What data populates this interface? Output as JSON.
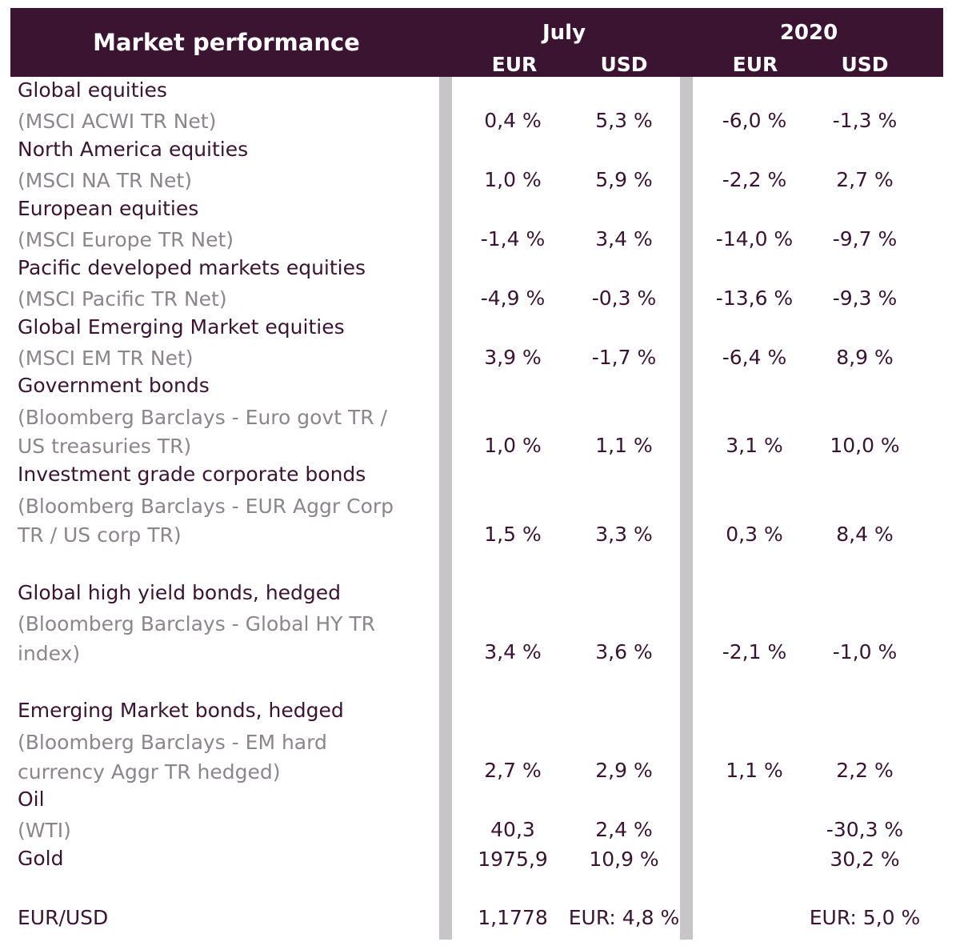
{
  "header": {
    "title": "Market performance",
    "group_july": "July",
    "group_2020": "2020",
    "cols": [
      "EUR",
      "USD",
      "EUR",
      "USD"
    ]
  },
  "rows": [
    {
      "name": "Global equities",
      "sub": [
        "(MSCI ACWI TR Net)"
      ],
      "values": [
        "0,4 %",
        "5,3 %",
        "-6,0 %",
        "-1,3 %"
      ]
    },
    {
      "name": "North America equities",
      "sub": [
        "(MSCI NA TR Net)"
      ],
      "values": [
        "1,0 %",
        "5,9 %",
        "-2,2 %",
        "2,7 %"
      ]
    },
    {
      "name": "European equities",
      "sub": [
        "(MSCI Europe TR Net)"
      ],
      "values": [
        "-1,4 %",
        "3,4 %",
        "-14,0 %",
        "-9,7 %"
      ]
    },
    {
      "name": "Pacific developed markets equities",
      "sub": [
        "(MSCI Pacific TR Net)"
      ],
      "values": [
        "-4,9 %",
        "-0,3 %",
        "-13,6 %",
        "-9,3 %"
      ]
    },
    {
      "name": "Global Emerging Market equities",
      "sub": [
        "(MSCI EM TR Net)"
      ],
      "values": [
        "3,9 %",
        "-1,7 %",
        "-6,4 %",
        "8,9 %"
      ]
    },
    {
      "name": "Government bonds",
      "sub": [
        "(Bloomberg Barclays - Euro govt TR /",
        "US treasuries TR)"
      ],
      "values": [
        "1,0 %",
        "1,1 %",
        "3,1 %",
        "10,0 %"
      ]
    },
    {
      "name": "Investment grade corporate bonds",
      "sub": [
        "(Bloomberg Barclays - EUR Aggr Corp",
        "TR / US corp TR)"
      ],
      "values": [
        "1,5 %",
        "3,3 %",
        "0,3 %",
        "8,4 %"
      ]
    },
    {
      "name": "Global high yield bonds, hedged",
      "sub": [
        "(Bloomberg Barclays - Global HY TR",
        "index)"
      ],
      "values": [
        "3,4 %",
        "3,6 %",
        "-2,1 %",
        "-1,0 %"
      ]
    },
    {
      "name": "Emerging Market bonds, hedged",
      "sub": [
        "(Bloomberg Barclays - EM hard",
        "currency Aggr TR hedged)"
      ],
      "values": [
        "2,7 %",
        "2,9 %",
        "1,1 %",
        "2,2 %"
      ]
    },
    {
      "name": "Oil",
      "sub": [
        "(WTI)"
      ],
      "values": [
        "40,3",
        "2,4 %",
        "",
        "-30,3 %"
      ]
    },
    {
      "name": "Gold",
      "sub": [],
      "values": [
        "1975,9",
        "10,9 %",
        "",
        "30,2 %"
      ]
    },
    {
      "name": "EUR/USD",
      "sub": [],
      "values": [
        "1,1778",
        "EUR: 4,8 %",
        "",
        "EUR: 5,0 %"
      ]
    }
  ]
}
